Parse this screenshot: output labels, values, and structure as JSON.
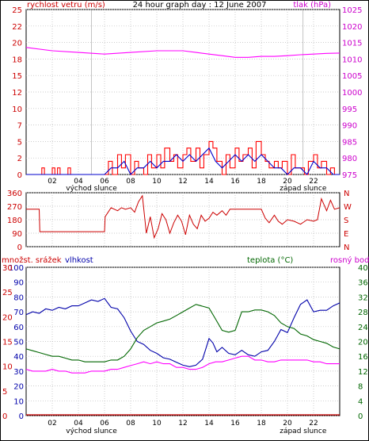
{
  "chart_data": [
    {
      "type": "line",
      "title": "24 hour graph day : 12 June 2007",
      "ylabel_left": "rychlost vetru (m/s)",
      "ylabel_right": "tlak (hPa)",
      "x_ticks": [
        "02",
        "04",
        "06",
        "08",
        "10",
        "12",
        "14",
        "16",
        "18",
        "20",
        "22"
      ],
      "sunrise_label": "východ slunce",
      "sunset_label": "západ slunce",
      "y_left_ticks": [
        "0",
        "2",
        "5",
        "7",
        "10",
        "12",
        "15",
        "18",
        "20",
        "22",
        "25"
      ],
      "y_right_ticks": [
        "975",
        "980",
        "985",
        "990",
        "995",
        "1000",
        "1005",
        "1010",
        "1015",
        "1020",
        "1025"
      ],
      "xlim": [
        0,
        24
      ],
      "ylim_left": [
        0,
        25
      ],
      "ylim_right": [
        975,
        1025
      ],
      "grid": true,
      "series": [
        {
          "name": "tlak",
          "color": "#ff00ff",
          "axis": "right",
          "x": [
            0,
            2,
            4,
            6,
            8,
            10,
            12,
            13,
            14,
            15,
            16,
            17,
            18,
            19,
            20,
            21,
            22,
            23,
            24
          ],
          "y": [
            1013.5,
            1012.5,
            1012,
            1011.5,
            1012,
            1012.5,
            1012.5,
            1012,
            1011.5,
            1011,
            1010.5,
            1010.5,
            1010.8,
            1010.8,
            1011,
            1011.3,
            1011.5,
            1011.7,
            1011.8
          ]
        },
        {
          "name": "rychlost vetru gust",
          "color": "#ff0000",
          "axis": "left",
          "x": [
            0,
            1,
            1.2,
            1.4,
            2,
            2.2,
            2.4,
            2.6,
            3,
            3.2,
            3.4,
            5,
            6,
            6.3,
            6.6,
            7,
            7.3,
            7.6,
            8,
            8.3,
            8.6,
            9,
            9.3,
            9.6,
            10,
            10.3,
            10.6,
            11,
            11.3,
            11.6,
            12,
            12.3,
            12.6,
            13,
            13.3,
            13.6,
            14,
            14.3,
            14.6,
            15,
            15.3,
            15.6,
            16,
            16.3,
            16.6,
            17,
            17.3,
            17.6,
            18,
            18.3,
            18.6,
            19,
            19.3,
            19.6,
            20,
            20.3,
            20.6,
            21,
            21.3,
            21.6,
            22,
            22.3,
            22.6,
            23,
            23.3,
            23.6,
            24
          ],
          "y": [
            0,
            0,
            1,
            0,
            1,
            0,
            1,
            0,
            0,
            1,
            0,
            0,
            0,
            2,
            0,
            3,
            1,
            3,
            0,
            2,
            1,
            0,
            3,
            1,
            3,
            1,
            4,
            2,
            3,
            1,
            3,
            4,
            2,
            4,
            1,
            3,
            5,
            4,
            2,
            0,
            3,
            1,
            4,
            2,
            3,
            4,
            1,
            5,
            3,
            2,
            1,
            2,
            1,
            2,
            0,
            3,
            1,
            1,
            0,
            2,
            3,
            1,
            2,
            0,
            1,
            0,
            0
          ]
        },
        {
          "name": "rychlost vetru avg",
          "color": "#0000cc",
          "axis": "left",
          "x": [
            0,
            5,
            6,
            6.5,
            7,
            7.5,
            8,
            8.5,
            9,
            9.5,
            10,
            10.5,
            11,
            11.5,
            12,
            12.5,
            13,
            13.5,
            14,
            14.5,
            15,
            15.5,
            16,
            16.5,
            17,
            17.5,
            18,
            18.5,
            19,
            19.5,
            20,
            20.5,
            21,
            21.5,
            22,
            22.5,
            23,
            23.5,
            24
          ],
          "y": [
            0,
            0,
            0,
            1,
            1,
            2,
            0,
            1,
            1,
            2,
            1,
            2,
            2,
            3,
            2,
            3,
            2,
            3,
            4,
            2,
            1,
            2,
            3,
            2,
            3,
            2,
            3,
            2,
            1,
            1,
            0,
            1,
            1,
            0,
            2,
            1,
            1,
            0,
            0
          ]
        }
      ]
    },
    {
      "type": "line",
      "ylabel_left_ticks": [
        "360",
        "270",
        "180",
        "90",
        "0"
      ],
      "ylabel_right_ticks": [
        "N",
        "W",
        "S",
        "E",
        "N"
      ],
      "ylim": [
        0,
        360
      ],
      "series": [
        {
          "name": "smer vetru",
          "color": "#cc0000",
          "x": [
            0,
            1,
            1.05,
            2,
            3,
            4,
            4.05,
            5,
            6,
            6.05,
            6.5,
            7,
            7.3,
            7.6,
            8,
            8.3,
            8.6,
            8.9,
            9.2,
            9.5,
            9.8,
            10.1,
            10.4,
            10.7,
            11,
            11.3,
            11.6,
            11.9,
            12.2,
            12.5,
            12.8,
            13.1,
            13.4,
            13.7,
            14,
            14.3,
            14.6,
            15,
            15.3,
            15.6,
            16,
            16.5,
            17,
            17.5,
            18,
            18.3,
            18.6,
            19,
            19.3,
            19.6,
            20,
            20.5,
            21,
            21.5,
            22,
            22.3,
            22.6,
            23,
            23.3,
            23.6,
            24
          ],
          "y": [
            250,
            250,
            100,
            100,
            100,
            100,
            100,
            100,
            100,
            200,
            260,
            240,
            260,
            250,
            260,
            230,
            300,
            340,
            90,
            200,
            60,
            120,
            220,
            180,
            90,
            160,
            210,
            170,
            80,
            210,
            150,
            120,
            210,
            170,
            190,
            230,
            210,
            240,
            210,
            250,
            250,
            250,
            250,
            250,
            250,
            190,
            160,
            210,
            170,
            150,
            180,
            170,
            150,
            180,
            170,
            180,
            320,
            240,
            310,
            250,
            260
          ]
        }
      ]
    },
    {
      "type": "line",
      "labels": {
        "left1": "množst. srážek",
        "left2": "vlhkost",
        "right1": "teplota (°C)",
        "right2": "rosný bod"
      },
      "y_rain_ticks": [
        "30",
        "25",
        "20",
        "15",
        "10",
        "5",
        "0"
      ],
      "y_hum_ticks": [
        "100",
        "90",
        "80",
        "70",
        "60",
        "50",
        "40",
        "30",
        "20",
        "10",
        "0"
      ],
      "y_temp_ticks": [
        "40",
        "36",
        "32",
        "28",
        "24",
        "20",
        "16",
        "12",
        "8",
        "4",
        "0"
      ],
      "ylim_hum": [
        0,
        100
      ],
      "ylim_temp": [
        0,
        40
      ],
      "series": [
        {
          "name": "vlhkost",
          "color": "#0000aa",
          "axis": "humidity",
          "x": [
            0,
            0.5,
            1,
            1.5,
            2,
            2.5,
            3,
            3.5,
            4,
            4.5,
            5,
            5.5,
            6,
            6.5,
            7,
            7.5,
            8,
            8.5,
            9,
            9.5,
            10,
            10.5,
            11,
            11.5,
            12,
            12.5,
            13,
            13.5,
            14,
            14.3,
            14.6,
            15,
            15.5,
            16,
            16.5,
            17,
            17.5,
            18,
            18.5,
            19,
            19.5,
            20,
            20.5,
            21,
            21.5,
            22,
            22.5,
            23,
            23.5,
            24
          ],
          "y": [
            68,
            70,
            69,
            72,
            71,
            73,
            72,
            74,
            74,
            76,
            78,
            77,
            79,
            73,
            72,
            66,
            57,
            50,
            48,
            44,
            42,
            39,
            38,
            36,
            34,
            33,
            34,
            38,
            52,
            49,
            43,
            46,
            42,
            41,
            44,
            41,
            40,
            43,
            44,
            50,
            58,
            56,
            66,
            75,
            78,
            70,
            71,
            71,
            74,
            76
          ]
        },
        {
          "name": "teplota",
          "color": "#006600",
          "axis": "temperature",
          "x": [
            0,
            0.5,
            1,
            1.5,
            2,
            2.5,
            3,
            3.5,
            4,
            4.5,
            5,
            5.5,
            6,
            6.5,
            7,
            7.5,
            8,
            8.5,
            9,
            9.5,
            10,
            10.5,
            11,
            11.5,
            12,
            12.5,
            13,
            13.5,
            14,
            14.5,
            15,
            15.5,
            16,
            16.5,
            17,
            17.5,
            18,
            18.5,
            19,
            19.5,
            20,
            20.5,
            21,
            21.5,
            22,
            22.5,
            23,
            23.5,
            24
          ],
          "y": [
            18,
            17.5,
            17,
            16.5,
            16,
            16,
            15.5,
            15,
            15,
            14.5,
            14.5,
            14.5,
            14.5,
            15,
            15,
            16,
            18,
            21,
            23,
            24,
            25,
            25.5,
            26,
            27,
            28,
            29,
            30,
            29.5,
            29,
            26,
            23,
            22.5,
            23,
            28,
            28,
            28.5,
            28.5,
            28,
            27,
            25,
            24,
            23.5,
            22,
            21.5,
            20.5,
            20,
            19.5,
            18.5,
            18
          ]
        },
        {
          "name": "rosný bod",
          "color": "#ff00ff",
          "axis": "temperature",
          "x": [
            0,
            0.5,
            1,
            1.5,
            2,
            2.5,
            3,
            3.5,
            4,
            4.5,
            5,
            5.5,
            6,
            6.5,
            7,
            7.5,
            8,
            8.5,
            9,
            9.5,
            10,
            10.5,
            11,
            11.5,
            12,
            12.5,
            13,
            13.5,
            14,
            14.5,
            15,
            15.5,
            16,
            16.5,
            17,
            17.5,
            18,
            18.5,
            19,
            19.5,
            20,
            20.5,
            21,
            21.5,
            22,
            22.5,
            23,
            23.5,
            24
          ],
          "y": [
            12.5,
            12,
            12,
            12,
            12.5,
            12,
            12,
            11.5,
            11.5,
            11.5,
            12,
            12,
            12,
            12.5,
            12.5,
            13,
            13.5,
            14,
            14.5,
            14,
            14.5,
            14,
            14,
            13,
            13,
            12.5,
            12.5,
            13,
            14,
            14.5,
            14.5,
            15,
            15.5,
            16,
            16,
            15,
            15,
            14.5,
            14.5,
            15,
            15,
            15,
            15,
            15,
            14.5,
            14.5,
            14,
            14,
            14
          ]
        }
      ]
    }
  ]
}
